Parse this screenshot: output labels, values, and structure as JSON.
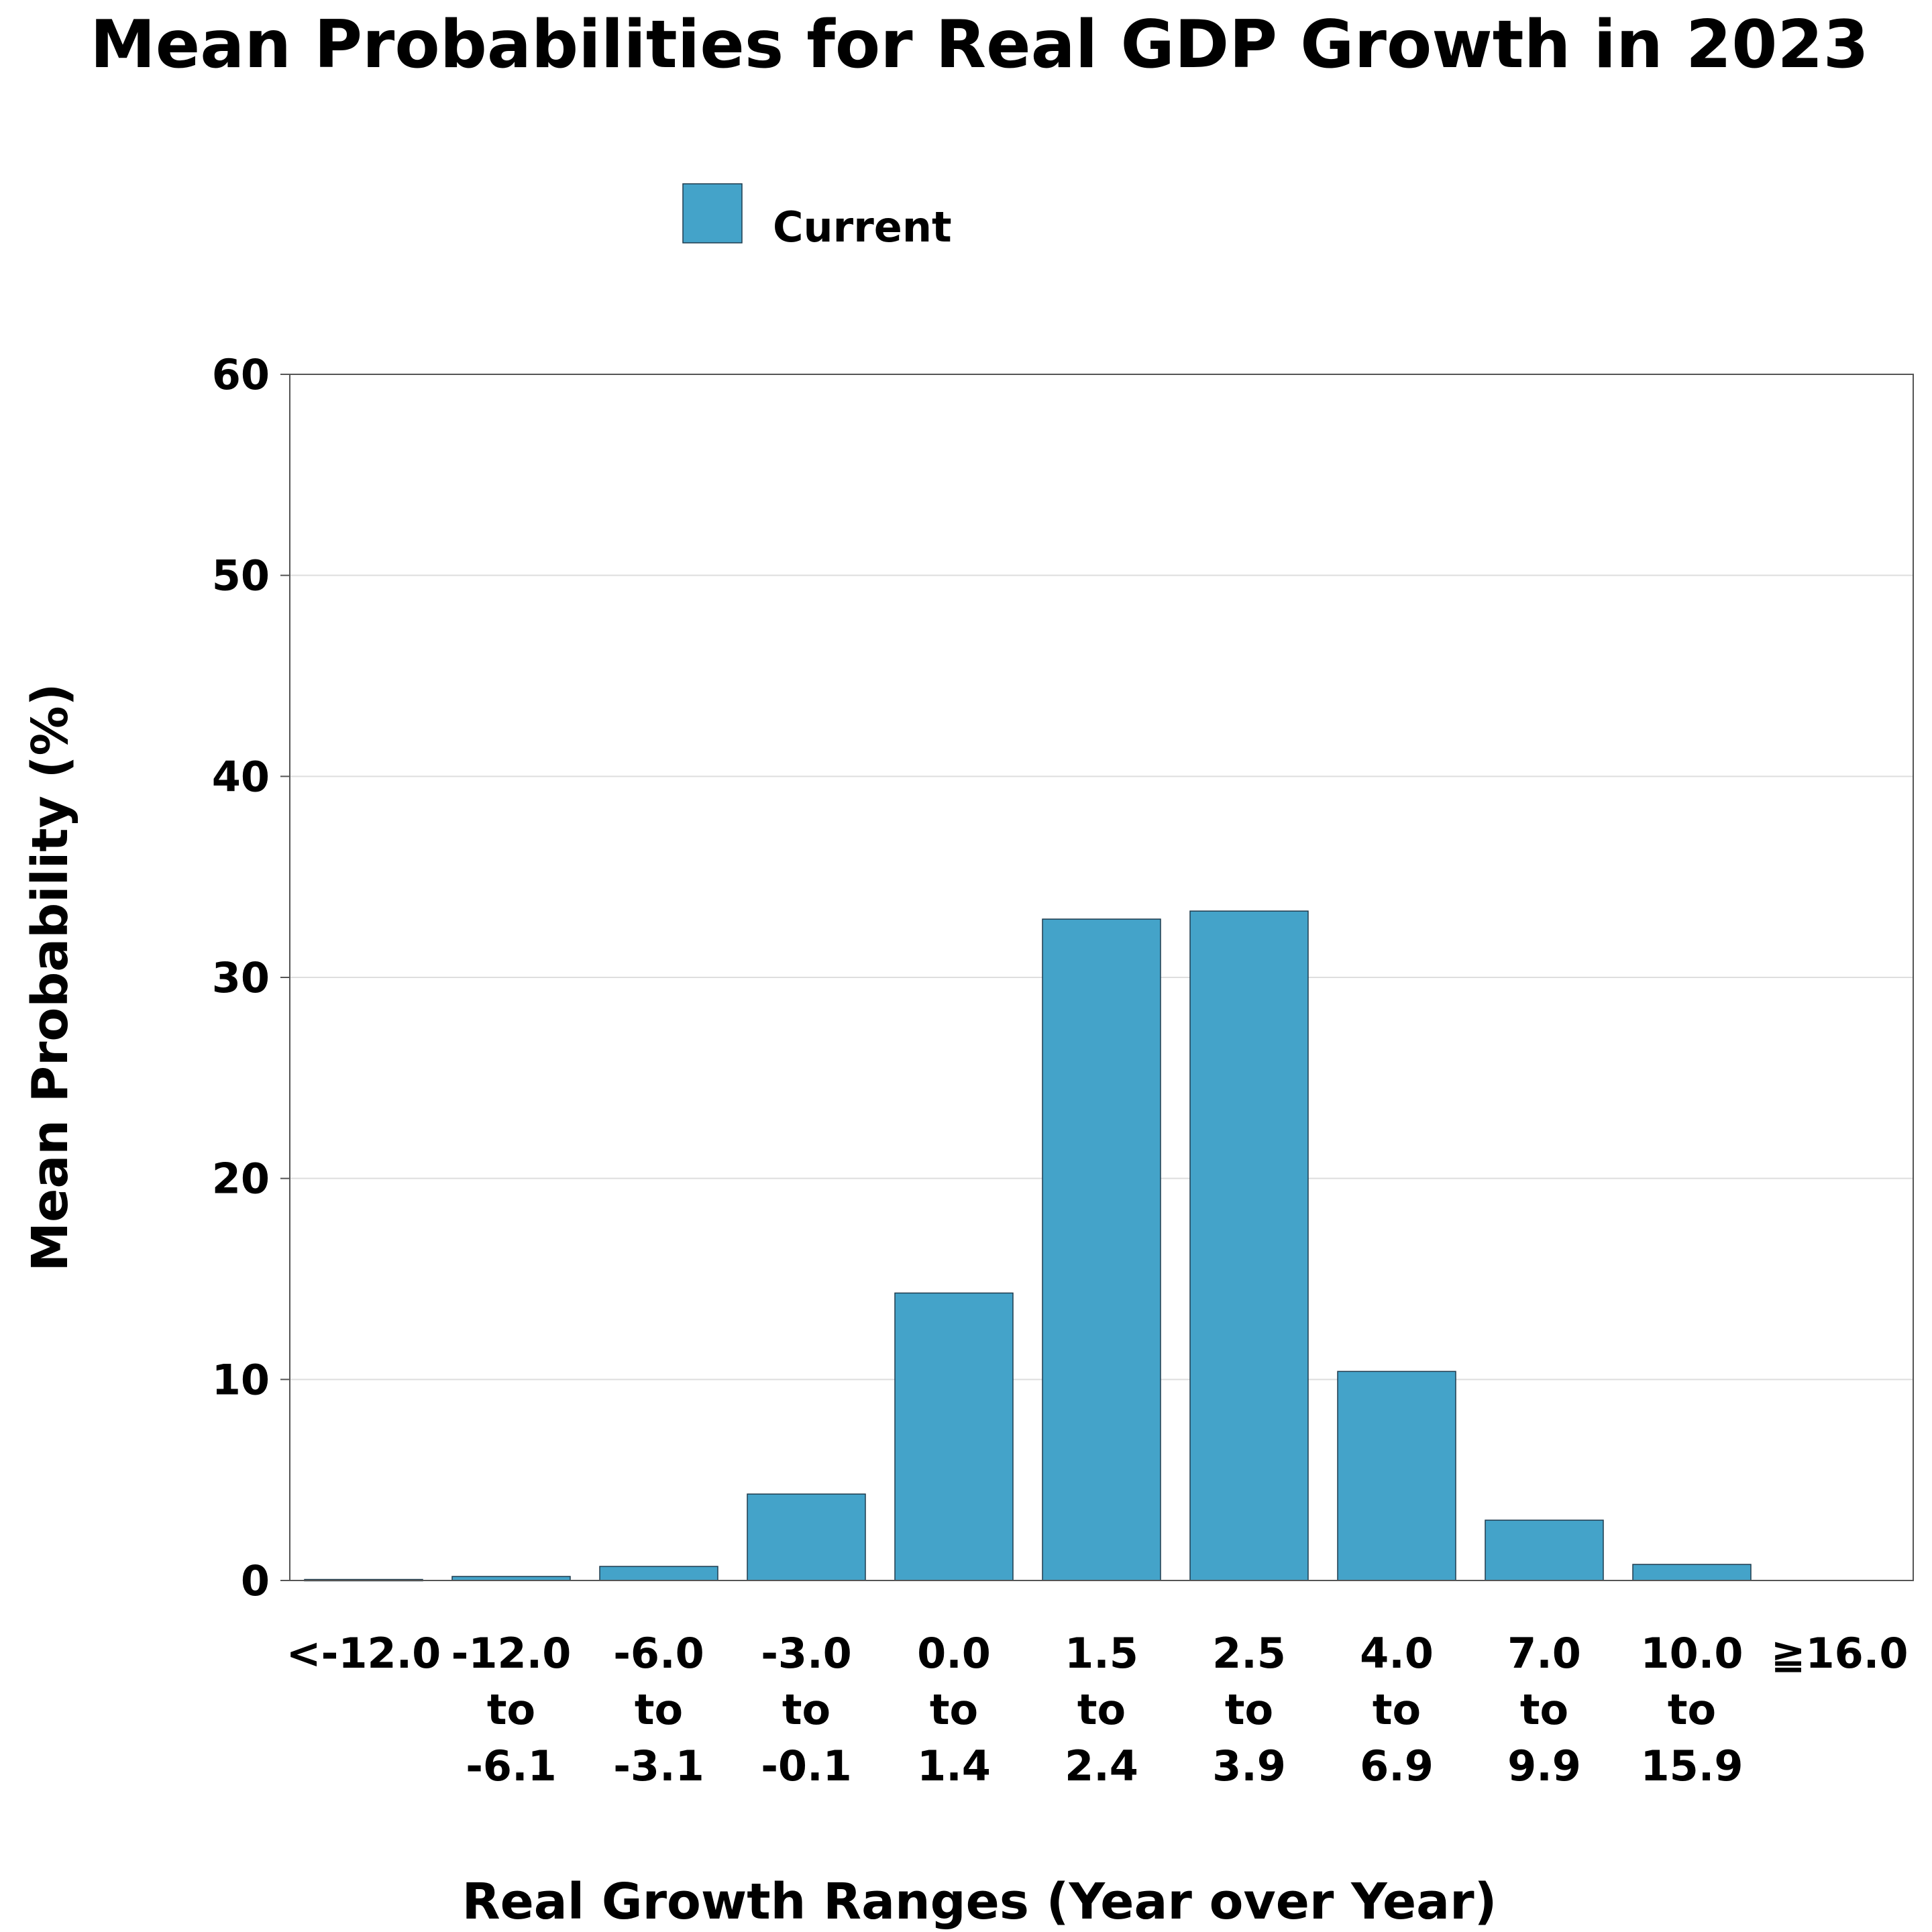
{
  "colors": {
    "bar_fill": "#44a3c9",
    "bar_stroke": "#1f3b4d",
    "grid": "#dedede",
    "axis": "#555555"
  },
  "chart_data": {
    "type": "bar",
    "title": "Mean Probabilities for Real GDP Growth in 2023",
    "xlabel": "Real Growth Ranges (Year over Year)",
    "ylabel": "Mean Probability (%)",
    "ylim": [
      0,
      60
    ],
    "yticks": [
      "0",
      "10",
      "20",
      "30",
      "40",
      "50",
      "60"
    ],
    "grid": true,
    "legend_position": "top-center",
    "categories": [
      "<-12.0",
      "-12.0 to -6.1",
      "-6.0 to -3.1",
      "-3.0 to -0.1",
      "0.0 to 1.4",
      "1.5 to 2.4",
      "2.5 to 3.9",
      "4.0 to 6.9",
      "7.0 to 9.9",
      "10.0 to 15.9",
      "≧16.0"
    ],
    "category_lines": [
      [
        "<-12.0"
      ],
      [
        "-12.0",
        "to",
        "-6.1"
      ],
      [
        "-6.0",
        "to",
        "-3.1"
      ],
      [
        "-3.0",
        "to",
        "-0.1"
      ],
      [
        "0.0",
        "to",
        "1.4"
      ],
      [
        "1.5",
        "to",
        "2.4"
      ],
      [
        "2.5",
        "to",
        "3.9"
      ],
      [
        "4.0",
        "to",
        "6.9"
      ],
      [
        "7.0",
        "to",
        "9.9"
      ],
      [
        "10.0",
        "to",
        "15.9"
      ],
      [
        "≧16.0"
      ]
    ],
    "series": [
      {
        "name": "Current",
        "values": [
          0.05,
          0.2,
          0.7,
          4.3,
          14.3,
          32.9,
          33.3,
          10.4,
          3.0,
          0.8,
          0.0
        ]
      }
    ]
  }
}
